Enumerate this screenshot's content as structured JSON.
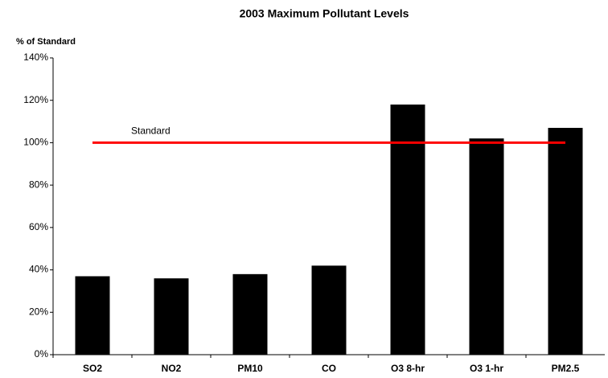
{
  "chart_data": {
    "type": "bar",
    "title": "2003 Maximum Pollutant Levels",
    "y_label": "% of Standard",
    "categories": [
      "SO2",
      "NO2",
      "PM10",
      "CO",
      "O3 8-hr",
      "O3 1-hr",
      "PM2.5"
    ],
    "values": [
      37,
      36,
      38,
      42,
      118,
      102,
      107
    ],
    "color": "#000000",
    "ylim": [
      0,
      140
    ],
    "yticks": [
      {
        "value": 0,
        "label": "0%"
      },
      {
        "value": 20,
        "label": "20%"
      },
      {
        "value": 40,
        "label": "40%"
      },
      {
        "value": 60,
        "label": "60%"
      },
      {
        "value": 80,
        "label": "80%"
      },
      {
        "value": 100,
        "label": "100%"
      },
      {
        "value": 120,
        "label": "120%"
      },
      {
        "value": 140,
        "label": "140%"
      }
    ],
    "grid": false,
    "reference_line": {
      "value": 100,
      "label": "Standard",
      "color": "#ff0000"
    }
  }
}
